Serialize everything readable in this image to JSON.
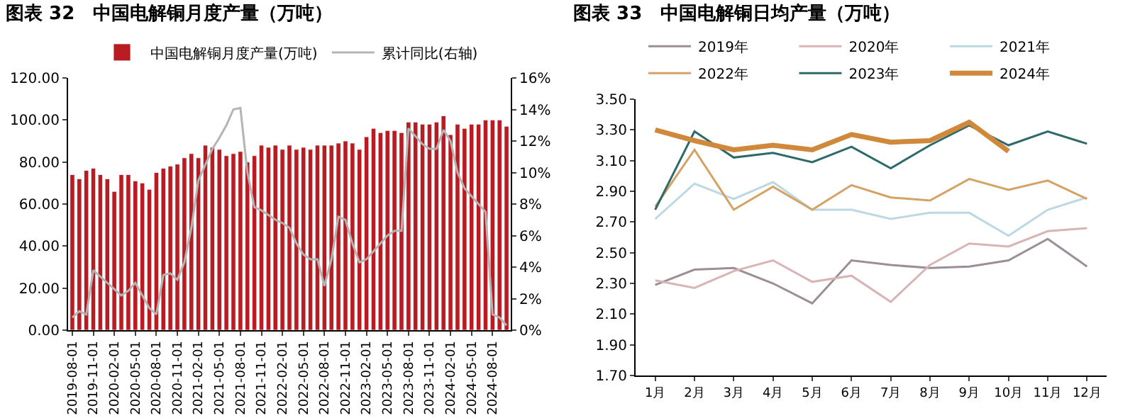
{
  "chart_data": [
    {
      "type": "bar",
      "title": "图表 32　中国电解铜月度产量（万吨）",
      "legend": "top",
      "categories": [
        "2019-08-01",
        null,
        null,
        "2019-11-01",
        null,
        null,
        "2020-02-01",
        null,
        null,
        "2020-05-01",
        null,
        null,
        "2020-08-01",
        null,
        null,
        "2020-11-01",
        null,
        null,
        "2021-02-01",
        null,
        null,
        "2021-05-01",
        null,
        null,
        "2021-08-01",
        null,
        null,
        "2021-11-01",
        null,
        null,
        "2022-02-01",
        null,
        null,
        "2022-05-01",
        null,
        null,
        "2022-08-01",
        null,
        null,
        "2022-11-01",
        null,
        null,
        "2023-02-01",
        null,
        null,
        "2023-05-01",
        null,
        null,
        "2023-08-01",
        null,
        null,
        "2023-11-01",
        null,
        null,
        "2024-02-01",
        null,
        null,
        "2024-05-01",
        null,
        null,
        "2024-08-01",
        null,
        null
      ],
      "ylim": [
        0,
        120
      ],
      "yticks": [
        {
          "value": 0,
          "label": "0.00"
        },
        {
          "value": 20,
          "label": "20.00"
        },
        {
          "value": 40,
          "label": "40.00"
        },
        {
          "value": 60,
          "label": "60.00"
        },
        {
          "value": 80,
          "label": "80.00"
        },
        {
          "value": 100,
          "label": "100.00"
        },
        {
          "value": 120,
          "label": "120.00"
        }
      ],
      "y2lim": [
        0,
        16
      ],
      "y2ticks": [
        {
          "value": 0,
          "label": "0%"
        },
        {
          "value": 2,
          "label": "2%"
        },
        {
          "value": 4,
          "label": "4%"
        },
        {
          "value": 6,
          "label": "6%"
        },
        {
          "value": 8,
          "label": "8%"
        },
        {
          "value": 10,
          "label": "10%"
        },
        {
          "value": 12,
          "label": "12%"
        },
        {
          "value": 14,
          "label": "14%"
        },
        {
          "value": 16,
          "label": "16%"
        }
      ],
      "series": [
        {
          "name": "中国电解铜月度产量(万吨)",
          "color": "#b81c22",
          "values": [
            74,
            72,
            76,
            77,
            74,
            72,
            66,
            74,
            74,
            71,
            70,
            67,
            75,
            77,
            78,
            79,
            82,
            84,
            82,
            88,
            87,
            86,
            83,
            84,
            85,
            80,
            83,
            88,
            87,
            88,
            86,
            88,
            86,
            87,
            86,
            88,
            88,
            88,
            89,
            90,
            89,
            86,
            92,
            96,
            94,
            95,
            95,
            94,
            99,
            99,
            98,
            98,
            99,
            102,
            93,
            98,
            96,
            98,
            98,
            100,
            100,
            100,
            97
          ]
        },
        {
          "name": "累计同比(右轴)",
          "type": "line",
          "axis": "y2",
          "color": "#b4b4b4",
          "values": [
            0.8,
            1.2,
            1.0,
            3.8,
            3.4,
            3.0,
            2.6,
            2.2,
            2.5,
            3.0,
            2.2,
            1.4,
            1.0,
            3.5,
            3.6,
            3.2,
            4.3,
            6.5,
            9.5,
            10.5,
            11.5,
            12.2,
            13.0,
            14.0,
            14.1,
            10.0,
            7.8,
            7.6,
            7.3,
            7.0,
            6.8,
            6.5,
            5.5,
            4.8,
            4.5,
            4.5,
            2.8,
            4.5,
            7.2,
            7.0,
            5.5,
            4.3,
            4.5,
            5.0,
            5.5,
            6.0,
            6.3,
            6.3,
            12.8,
            12.3,
            11.8,
            11.5,
            11.5,
            12.7,
            12.0,
            10.0,
            9.0,
            8.5,
            8.0,
            7.5,
            1.0,
            0.8,
            0.3
          ]
        }
      ]
    },
    {
      "type": "line",
      "title": "图表 33　中国电解铜日均产量（万吨）",
      "legend": "top",
      "categories": [
        "1月",
        "2月",
        "3月",
        "4月",
        "5月",
        "6月",
        "7月",
        "8月",
        "9月",
        "10月",
        "11月",
        "12月"
      ],
      "ylim": [
        1.7,
        3.5
      ],
      "yticks": [
        {
          "value": 1.7,
          "label": "1.70"
        },
        {
          "value": 1.9,
          "label": "1.90"
        },
        {
          "value": 2.1,
          "label": "2.10"
        },
        {
          "value": 2.3,
          "label": "2.30"
        },
        {
          "value": 2.5,
          "label": "2.50"
        },
        {
          "value": 2.7,
          "label": "2.70"
        },
        {
          "value": 2.9,
          "label": "2.90"
        },
        {
          "value": 3.1,
          "label": "3.10"
        },
        {
          "value": 3.3,
          "label": "3.30"
        },
        {
          "value": 3.5,
          "label": "3.50"
        }
      ],
      "series": [
        {
          "name": "2019年",
          "color": "#9c8e98",
          "values": [
            2.29,
            2.39,
            2.4,
            2.3,
            2.17,
            2.45,
            2.42,
            2.4,
            2.41,
            2.45,
            2.59,
            2.41
          ]
        },
        {
          "name": "2020年",
          "color": "#d8b4b4",
          "values": [
            2.32,
            2.27,
            2.38,
            2.45,
            2.31,
            2.35,
            2.18,
            2.42,
            2.56,
            2.54,
            2.64,
            2.66
          ]
        },
        {
          "name": "2021年",
          "color": "#bcd8e2",
          "values": [
            2.72,
            2.95,
            2.85,
            2.96,
            2.78,
            2.78,
            2.72,
            2.76,
            2.76,
            2.61,
            2.78,
            2.86
          ]
        },
        {
          "name": "2022年",
          "color": "#d4a264",
          "values": [
            2.8,
            3.17,
            2.78,
            2.93,
            2.78,
            2.94,
            2.86,
            2.84,
            2.98,
            2.91,
            2.97,
            2.85
          ]
        },
        {
          "name": "2023年",
          "color": "#2f6a6a",
          "values": [
            2.78,
            3.29,
            3.12,
            3.15,
            3.09,
            3.19,
            3.05,
            3.2,
            3.33,
            3.2,
            3.29,
            3.21
          ]
        },
        {
          "name": "2024年",
          "color": "#d0883a",
          "values": [
            3.3,
            3.23,
            3.17,
            3.2,
            3.17,
            3.27,
            3.22,
            3.23,
            3.35,
            3.16,
            null,
            null
          ]
        }
      ]
    }
  ]
}
